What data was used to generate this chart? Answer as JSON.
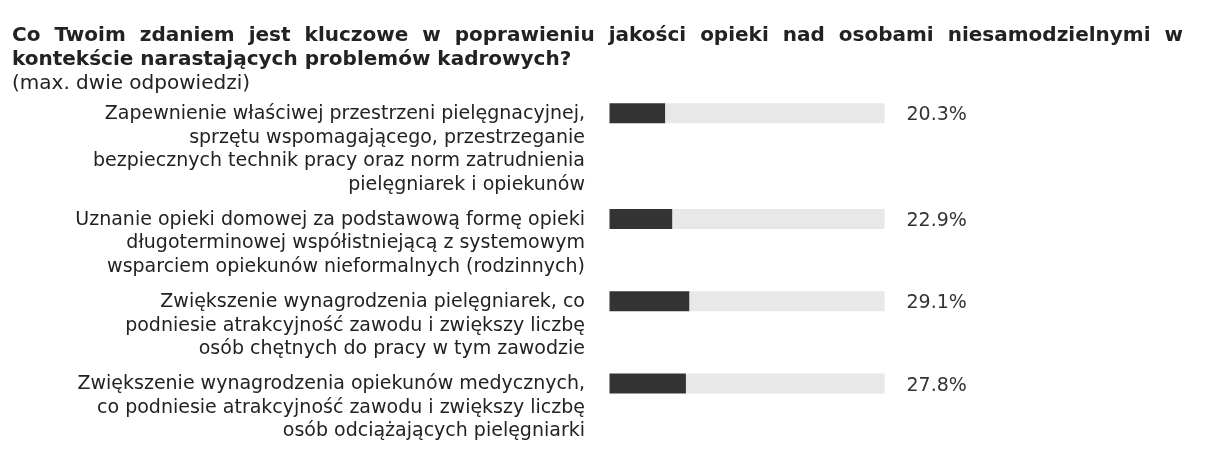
{
  "chart_data": {
    "type": "bar",
    "orientation": "horizontal",
    "stacked": true,
    "title": "Co Twoim zdaniem jest kluczowe w poprawieniu jakości opieki nad osobami niesamodzielnymi w kontekście narastających problemów kadrowych?",
    "subtitle": "(max. dwie odpowiedzi)",
    "categories": [
      "Zapewnienie właściwej przestrzeni pielęgnacyjnej,\nsprzętu wspomagającego, przestrzeganie\nbezpiecznych technik pracy oraz norm zatrudnienia\npielęgniarek i opiekunów",
      "Uznanie opieki domowej za podstawową formę opieki\ndługoterminowej współistniejącą z systemowym\nwsparciem opiekunów nieformalnych (rodzinnych)",
      "Zwiększenie wynagrodzenia pielęgniarek, co\npodniesie atrakcyjność zawodu i zwiększy liczbę\nosób chętnych do pracy w tym zawodzie",
      "Zwiększenie wynagrodzenia opiekunów medycznych,\nco podniesie atrakcyjność zawodu i zwiększy liczbę\nosób odciążających pielęgniarki"
    ],
    "series": [
      {
        "color": "#333333",
        "values": [
          20.3,
          22.9,
          29.1,
          27.8
        ],
        "value_labels": [
          "20.3%",
          "22.9%",
          "29.1%",
          "27.8%"
        ]
      },
      {
        "color": "#e8e8e8",
        "values": [
          79.7,
          77.1,
          70.9,
          72.2
        ]
      }
    ],
    "xlim": [
      0,
      100
    ],
    "tick_labels": "y"
  }
}
